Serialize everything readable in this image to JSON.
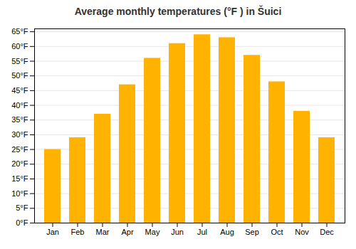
{
  "chart_data": {
    "type": "bar",
    "title": "Average monthly temperatures (°F ) in Šuici",
    "categories": [
      "Jan",
      "Feb",
      "Mar",
      "Apr",
      "May",
      "Jun",
      "Jul",
      "Aug",
      "Sep",
      "Oct",
      "Nov",
      "Dec"
    ],
    "values": [
      25,
      29,
      37,
      47,
      56,
      61,
      64,
      63,
      57,
      48,
      38,
      29
    ],
    "color": "#FFB300",
    "ylim": [
      0,
      66
    ],
    "yticks": [
      {
        "value": 0,
        "label": "0°F"
      },
      {
        "value": 5,
        "label": "5°F"
      },
      {
        "value": 10,
        "label": "10°F"
      },
      {
        "value": 15,
        "label": "15°F"
      },
      {
        "value": 20,
        "label": "20°F"
      },
      {
        "value": 25,
        "label": "25°F"
      },
      {
        "value": 30,
        "label": "30°F"
      },
      {
        "value": 35,
        "label": "35°F"
      },
      {
        "value": 40,
        "label": "40°F"
      },
      {
        "value": 45,
        "label": "45°F"
      },
      {
        "value": 50,
        "label": "50°F"
      },
      {
        "value": 55,
        "label": "55°F"
      },
      {
        "value": 60,
        "label": "60°F"
      },
      {
        "value": 65,
        "label": "65°F"
      }
    ],
    "grid": true
  }
}
